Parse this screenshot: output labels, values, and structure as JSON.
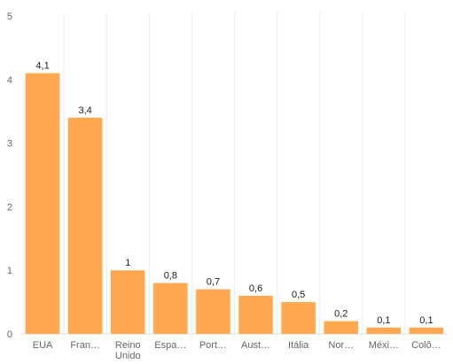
{
  "chart_data": {
    "type": "bar",
    "categories": [
      "EUA",
      "Fran…",
      "Reino Unido",
      "Espa…",
      "Port…",
      "Aust…",
      "Itália",
      "Nor…",
      "Méxi…",
      "Colô…"
    ],
    "values": [
      4.1,
      3.4,
      1,
      0.8,
      0.7,
      0.6,
      0.5,
      0.2,
      0.1,
      0.1
    ],
    "data_labels": [
      "4,1",
      "3,4",
      "1",
      "0,8",
      "0,7",
      "0,6",
      "0,5",
      "0,2",
      "0,1",
      "0,1"
    ],
    "yticks": [
      0,
      1,
      2,
      3,
      4,
      5
    ],
    "ylim": [
      0,
      5
    ],
    "grid": "vertical",
    "legend": "none",
    "bar_color": "#ffa84f"
  }
}
